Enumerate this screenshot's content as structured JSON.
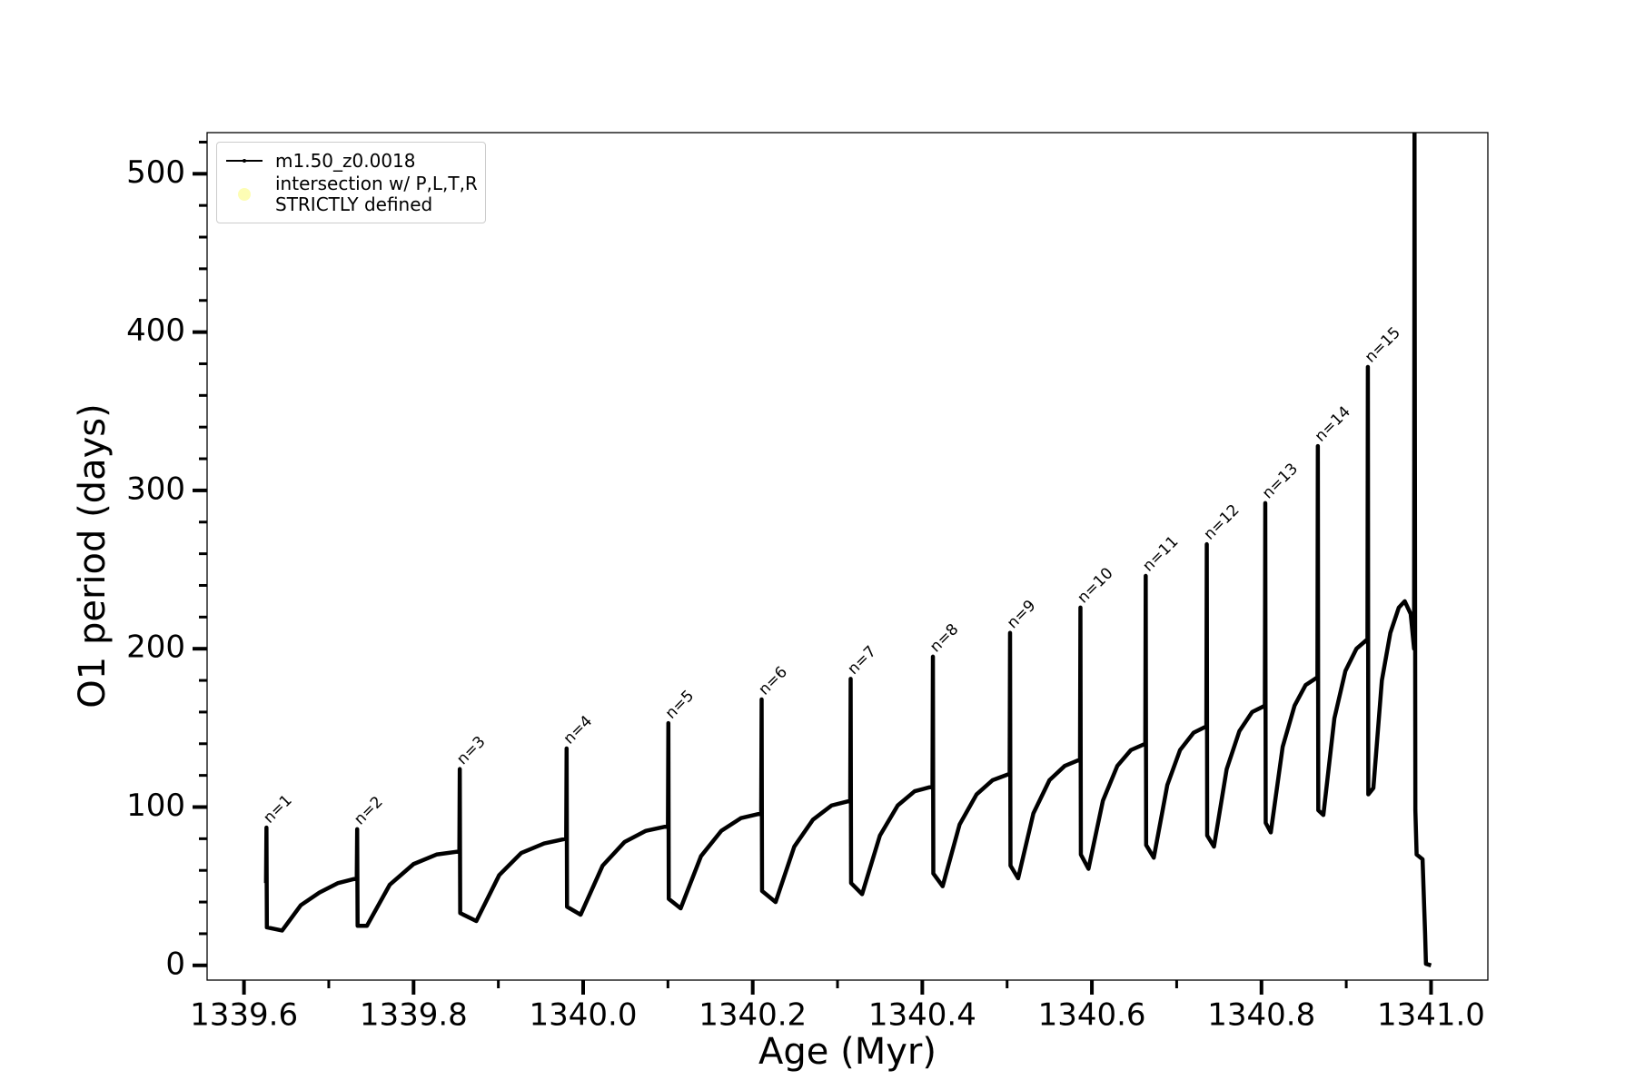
{
  "chart_data": {
    "type": "line",
    "xlabel": "Age (Myr)",
    "ylabel": "O1 period (days)",
    "xlim": [
      1339.5565,
      1341.067
    ],
    "ylim": [
      -9.3,
      526
    ],
    "xticks": [
      1339.6,
      1339.8,
      {
        "value": 1340,
        "label": "1340.0"
      },
      1340.2,
      1340.4,
      1340.6,
      1340.8,
      {
        "value": 1341,
        "label": "1341.0"
      }
    ],
    "xminorticks": [
      1339.7,
      1339.9,
      1340.1,
      1340.3,
      1340.5,
      1340.7,
      1340.9
    ],
    "yticks": [
      0,
      100,
      200,
      300,
      400,
      500
    ],
    "yminorticks": [
      20,
      40,
      60,
      80,
      120,
      140,
      160,
      180,
      220,
      240,
      260,
      280,
      320,
      340,
      360,
      380,
      420,
      440,
      460,
      480,
      520
    ],
    "grid": false,
    "legend": "upper left",
    "series": [
      {
        "name": "m1.50_z0.0018",
        "color": "#000000",
        "marker": "dot",
        "x": [
          1339.626,
          1339.6265,
          1339.627,
          1339.645,
          1339.667,
          1339.689,
          1339.711,
          1339.733,
          1339.7335,
          1339.734,
          1339.745,
          1339.772,
          1339.8,
          1339.827,
          1339.854,
          1339.8545,
          1339.855,
          1339.874,
          1339.901,
          1339.927,
          1339.954,
          1339.98,
          1339.9805,
          1339.981,
          1339.997,
          1340.023,
          1340.049,
          1340.074,
          1340.1,
          1340.1005,
          1340.101,
          1340.115,
          1340.139,
          1340.163,
          1340.186,
          1340.21,
          1340.2105,
          1340.211,
          1340.227,
          1340.249,
          1340.271,
          1340.293,
          1340.315,
          1340.3155,
          1340.316,
          1340.329,
          1340.35,
          1340.371,
          1340.391,
          1340.412,
          1340.4125,
          1340.413,
          1340.424,
          1340.444,
          1340.464,
          1340.483,
          1340.503,
          1340.5035,
          1340.504,
          1340.513,
          1340.531,
          1340.55,
          1340.568,
          1340.586,
          1340.5865,
          1340.587,
          1340.596,
          1340.613,
          1340.63,
          1340.646,
          1340.663,
          1340.6635,
          1340.664,
          1340.673,
          1340.689,
          1340.704,
          1340.72,
          1340.735,
          1340.7355,
          1340.736,
          1340.744,
          1340.759,
          1340.774,
          1340.789,
          1340.804,
          1340.8045,
          1340.805,
          1340.811,
          1340.825,
          1340.839,
          1340.852,
          1340.866,
          1340.8665,
          1340.867,
          1340.873,
          1340.886,
          1340.899,
          1340.912,
          1340.925,
          1340.9255,
          1340.926,
          1340.932,
          1340.942,
          1340.952,
          1340.962,
          1340.969,
          1340.976,
          1340.98,
          1340.9805,
          1340.9815,
          1340.983,
          1340.99,
          1340.993,
          1340.994,
          1341.0
        ],
        "values": [
          52,
          87,
          24,
          22,
          38,
          46,
          52,
          55,
          86,
          25,
          25,
          51,
          64,
          70,
          72,
          124,
          33,
          28,
          57,
          71,
          77,
          80,
          137,
          37,
          32,
          63,
          78,
          85,
          88,
          153,
          42,
          36,
          69,
          85,
          93,
          96,
          168,
          47,
          40,
          75,
          92,
          101,
          104,
          181,
          52,
          45,
          82,
          101,
          110,
          113,
          195,
          58,
          50,
          89,
          108,
          117,
          121,
          210,
          63,
          55,
          96,
          117,
          126,
          130,
          226,
          70,
          61,
          104,
          126,
          136,
          140,
          246,
          76,
          68,
          114,
          136,
          147,
          151,
          266,
          82,
          75,
          124,
          148,
          160,
          164,
          292,
          90,
          84,
          138,
          164,
          177,
          182,
          328,
          98,
          95,
          156,
          186,
          200,
          206,
          378,
          108,
          112,
          180,
          210,
          226,
          230,
          222,
          200,
          530,
          98,
          70,
          67,
          20,
          1,
          0
        ]
      },
      {
        "name": "intersection w/ P,L,T,R\nSTRICTLY defined",
        "color": "#fdfdb4",
        "type": "scatter"
      }
    ],
    "annotations": [
      {
        "text": "n=1",
        "x": 1339.626,
        "y": 87
      },
      {
        "text": "n=2",
        "x": 1339.733,
        "y": 86
      },
      {
        "text": "n=3",
        "x": 1339.854,
        "y": 124
      },
      {
        "text": "n=4",
        "x": 1339.98,
        "y": 137
      },
      {
        "text": "n=5",
        "x": 1340.1,
        "y": 153
      },
      {
        "text": "n=6",
        "x": 1340.21,
        "y": 168
      },
      {
        "text": "n=7",
        "x": 1340.315,
        "y": 181
      },
      {
        "text": "n=8",
        "x": 1340.412,
        "y": 195
      },
      {
        "text": "n=9",
        "x": 1340.503,
        "y": 210
      },
      {
        "text": "n=10",
        "x": 1340.586,
        "y": 226
      },
      {
        "text": "n=11",
        "x": 1340.663,
        "y": 246
      },
      {
        "text": "n=12",
        "x": 1340.735,
        "y": 266
      },
      {
        "text": "n=13",
        "x": 1340.804,
        "y": 292
      },
      {
        "text": "n=14",
        "x": 1340.866,
        "y": 328
      },
      {
        "text": "n=15",
        "x": 1340.925,
        "y": 378
      }
    ]
  }
}
